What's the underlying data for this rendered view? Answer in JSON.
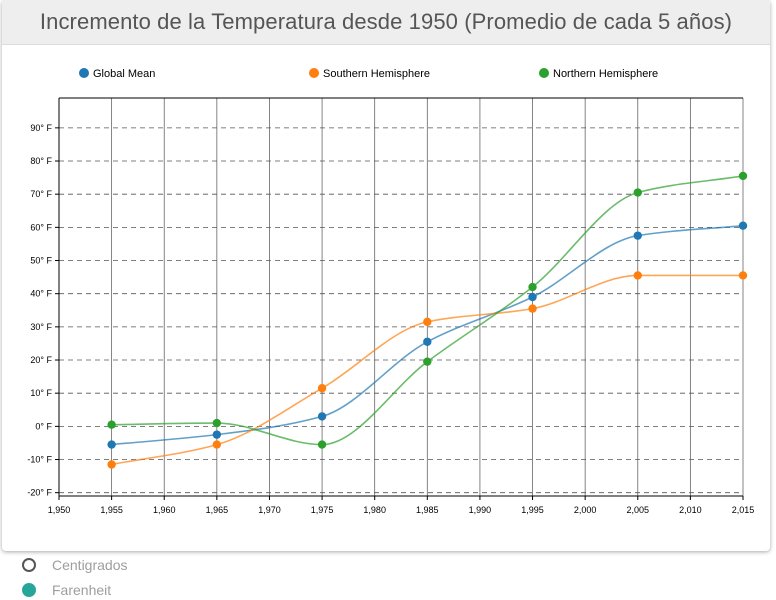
{
  "title": "Incremento de la Temperatura desde 1950 (Promedio de cada 5 años)",
  "colors": {
    "global": "#1f77b4",
    "southern": "#ff7f0e",
    "northern": "#2ca02c",
    "radio_accent": "#26a69a"
  },
  "units": {
    "options": [
      {
        "label": "Centigrados",
        "selected": false
      },
      {
        "label": "Farenheit",
        "selected": true
      }
    ]
  },
  "chart_data": {
    "type": "line",
    "title": "Incremento de la Temperatura desde 1950 (Promedio de cada 5 años)",
    "x": [
      1955,
      1965,
      1975,
      1985,
      1995,
      2005,
      2015
    ],
    "x_ticks": [
      1950,
      1955,
      1960,
      1965,
      1970,
      1975,
      1980,
      1985,
      1990,
      1995,
      2000,
      2005,
      2010,
      2015
    ],
    "x_tick_labels": [
      "1,950",
      "1,955",
      "1,960",
      "1,965",
      "1,970",
      "1,975",
      "1,980",
      "1,985",
      "1,990",
      "1,995",
      "2,000",
      "2,005",
      "2,010",
      "2,015"
    ],
    "xlim": [
      1950,
      2015
    ],
    "y_ticks": [
      -20,
      -10,
      0,
      10,
      20,
      30,
      40,
      50,
      60,
      70,
      80,
      90
    ],
    "y_tick_labels": [
      "-20° F",
      "-10° F",
      "0° F",
      "10° F",
      "20° F",
      "30° F",
      "40° F",
      "50° F",
      "60° F",
      "70° F",
      "80° F",
      "90° F"
    ],
    "ylim": [
      -21,
      99
    ],
    "grid": true,
    "legend_position": "top",
    "series": [
      {
        "name": "Global Mean",
        "color_key": "global",
        "values": [
          -5.5,
          -2.5,
          3,
          25.5,
          39,
          57.5,
          60.5
        ]
      },
      {
        "name": "Southern Hemisphere",
        "color_key": "southern",
        "values": [
          -11.5,
          -5.5,
          11.5,
          31.5,
          35.5,
          45.5,
          45.5
        ]
      },
      {
        "name": "Northern Hemisphere",
        "color_key": "northern",
        "values": [
          0.5,
          1,
          -5.5,
          19.5,
          42,
          70.5,
          75.5
        ]
      }
    ]
  }
}
